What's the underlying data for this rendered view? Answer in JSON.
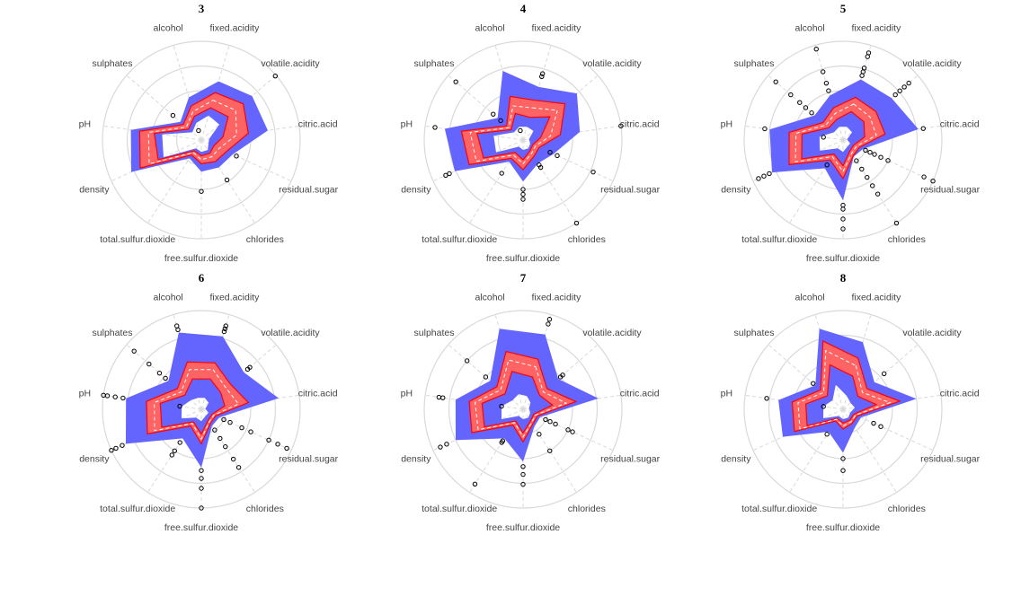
{
  "chart_data": {
    "type": "radar",
    "variables": [
      "fixed.acidity",
      "volatile.acidity",
      "citric.acid",
      "residual.sugar",
      "chlorides",
      "free.sulfur.dioxide",
      "total.sulfur.dioxide",
      "density",
      "pH",
      "sulphates",
      "alcohol"
    ],
    "rlim": [
      0,
      1
    ],
    "grid": true,
    "colors": {
      "whisker_band": "#6464FF",
      "iqr_band": "#FF6464",
      "iqr_border": "#FF0000",
      "median": "#FFFFFF",
      "grid": "#D9D9D9",
      "outlier": "#000000"
    },
    "panels": [
      {
        "title": "3",
        "lo": [
          0.26,
          0.24,
          0.08,
          0.08,
          0.12,
          0.12,
          0.1,
          0.42,
          0.4,
          0.12,
          0.18
        ],
        "q1": [
          0.34,
          0.36,
          0.22,
          0.14,
          0.16,
          0.16,
          0.13,
          0.48,
          0.48,
          0.17,
          0.25
        ],
        "med": [
          0.42,
          0.46,
          0.36,
          0.2,
          0.2,
          0.2,
          0.15,
          0.58,
          0.54,
          0.2,
          0.3
        ],
        "q3": [
          0.5,
          0.56,
          0.48,
          0.28,
          0.26,
          0.24,
          0.18,
          0.68,
          0.63,
          0.24,
          0.36
        ],
        "hi": [
          0.62,
          0.68,
          0.68,
          0.35,
          0.33,
          0.32,
          0.22,
          0.78,
          0.72,
          0.28,
          0.45
        ],
        "outliers": [
          [],
          [
            0.99
          ],
          [],
          [
            0.39
          ],
          [
            0.48
          ],
          [
            0.52
          ],
          [],
          [],
          [],
          [
            0.38
          ],
          [
            0.1
          ]
        ]
      },
      {
        "title": "4",
        "lo": [
          0.14,
          0.14,
          0.06,
          0.08,
          0.1,
          0.1,
          0.08,
          0.3,
          0.3,
          0.12,
          0.14
        ],
        "q1": [
          0.24,
          0.36,
          0.18,
          0.11,
          0.13,
          0.2,
          0.15,
          0.44,
          0.47,
          0.16,
          0.28
        ],
        "med": [
          0.34,
          0.46,
          0.28,
          0.14,
          0.16,
          0.24,
          0.18,
          0.52,
          0.54,
          0.19,
          0.36
        ],
        "q3": [
          0.42,
          0.56,
          0.38,
          0.18,
          0.2,
          0.3,
          0.22,
          0.6,
          0.63,
          0.22,
          0.46
        ],
        "hi": [
          0.56,
          0.72,
          0.58,
          0.34,
          0.28,
          0.42,
          0.26,
          0.76,
          0.8,
          0.34,
          0.73
        ],
        "outliers": [
          [
            0.67,
            0.7
          ],
          [],
          [
            1.0
          ],
          [
            0.3,
            0.38,
            0.78
          ],
          [
            0.3,
            0.33,
            1.0
          ],
          [
            0.5,
            0.55,
            0.6
          ],
          [
            0.4
          ],
          [
            0.82,
            0.86
          ],
          [
            0.9
          ],
          [
            0.3,
            0.4,
            0.9
          ],
          [
            0.1
          ]
        ]
      },
      {
        "title": "5",
        "lo": [
          0.14,
          0.12,
          0.04,
          0.08,
          0.08,
          0.12,
          0.1,
          0.26,
          0.24,
          0.12,
          0.14
        ],
        "q1": [
          0.3,
          0.28,
          0.22,
          0.12,
          0.13,
          0.26,
          0.17,
          0.46,
          0.42,
          0.19,
          0.22
        ],
        "med": [
          0.38,
          0.36,
          0.34,
          0.15,
          0.16,
          0.32,
          0.2,
          0.53,
          0.48,
          0.23,
          0.28
        ],
        "q3": [
          0.45,
          0.44,
          0.43,
          0.18,
          0.19,
          0.39,
          0.24,
          0.6,
          0.55,
          0.27,
          0.34
        ],
        "hi": [
          0.64,
          0.65,
          0.77,
          0.22,
          0.2,
          0.61,
          0.34,
          0.79,
          0.75,
          0.38,
          0.47
        ],
        "outliers": [
          [
            0.68,
            0.72,
            0.76,
            0.88,
            0.92
          ],
          [
            0.7,
            0.76,
            0.82,
            0.88
          ],
          [
            0.82
          ],
          [
            0.25,
            0.3,
            0.35,
            0.42,
            0.5,
            0.9,
            1.0
          ],
          [
            0.25,
            0.35,
            0.45,
            0.55,
            0.65,
            1.0
          ],
          [
            0.66,
            0.7,
            0.8,
            0.9
          ],
          [
            0.3
          ],
          [
            0.82,
            0.88,
            0.94
          ],
          [
            0.2,
            0.8
          ],
          [
            0.42,
            0.5,
            0.58,
            0.7,
            0.9
          ],
          [
            0.52,
            0.6,
            0.72,
            0.96
          ]
        ]
      },
      {
        "title": "6",
        "lo": [
          0.12,
          0.1,
          0.04,
          0.08,
          0.08,
          0.12,
          0.1,
          0.22,
          0.2,
          0.14,
          0.12
        ],
        "q1": [
          0.32,
          0.26,
          0.24,
          0.12,
          0.13,
          0.25,
          0.15,
          0.44,
          0.42,
          0.22,
          0.32
        ],
        "med": [
          0.42,
          0.33,
          0.38,
          0.14,
          0.15,
          0.3,
          0.17,
          0.52,
          0.48,
          0.27,
          0.42
        ],
        "q3": [
          0.49,
          0.39,
          0.48,
          0.16,
          0.17,
          0.35,
          0.2,
          0.6,
          0.56,
          0.32,
          0.5
        ],
        "hi": [
          0.77,
          0.57,
          0.79,
          0.2,
          0.2,
          0.59,
          0.35,
          0.84,
          0.77,
          0.44,
          0.81
        ],
        "outliers": [
          [
            0.82,
            0.85,
            0.88
          ],
          [
            0.62,
            0.65
          ],
          [],
          [
            0.25,
            0.32,
            0.45,
            0.55,
            0.75,
            0.85,
            0.95
          ],
          [
            0.25,
            0.35,
            0.45,
            0.6,
            0.7
          ],
          [
            0.62,
            0.7,
            0.8,
            1.0
          ],
          [
            0.4,
            0.5,
            0.55
          ],
          [
            0.88,
            0.95,
            1.0
          ],
          [
            0.22,
            0.8,
            0.88,
            0.96,
            1.0
          ],
          [
            0.48,
            0.56,
            0.7,
            0.9
          ],
          [
            0.84,
            0.88
          ]
        ]
      },
      {
        "title": "7",
        "lo": [
          0.14,
          0.1,
          0.06,
          0.08,
          0.1,
          0.1,
          0.08,
          0.24,
          0.22,
          0.14,
          0.16
        ],
        "q1": [
          0.34,
          0.22,
          0.3,
          0.12,
          0.14,
          0.24,
          0.14,
          0.43,
          0.42,
          0.24,
          0.4
        ],
        "med": [
          0.45,
          0.27,
          0.44,
          0.14,
          0.16,
          0.28,
          0.16,
          0.5,
          0.49,
          0.3,
          0.52
        ],
        "q3": [
          0.53,
          0.32,
          0.54,
          0.16,
          0.18,
          0.33,
          0.19,
          0.57,
          0.55,
          0.35,
          0.61
        ],
        "hi": [
          0.79,
          0.47,
          0.77,
          0.19,
          0.21,
          0.53,
          0.35,
          0.75,
          0.69,
          0.44,
          0.85
        ],
        "outliers": [
          [
            0.9,
            0.95
          ],
          [
            0.5,
            0.53
          ],
          [],
          [
            0.25,
            0.3,
            0.36,
            0.5,
            0.55
          ],
          [
            0.3,
            0.5
          ],
          [
            0.58,
            0.66,
            0.76
          ],
          [
            0.38,
            0.4,
            0.9
          ],
          [
            0.85,
            0.92
          ],
          [
            0.22,
            0.82,
            0.86
          ],
          [
            0.5,
            0.75
          ],
          []
        ]
      },
      {
        "title": "8",
        "lo": [
          0.14,
          0.1,
          0.12,
          0.08,
          0.1,
          0.1,
          0.08,
          0.22,
          0.2,
          0.14,
          0.26
        ],
        "q1": [
          0.35,
          0.2,
          0.34,
          0.12,
          0.13,
          0.14,
          0.11,
          0.4,
          0.38,
          0.21,
          0.47
        ],
        "med": [
          0.46,
          0.26,
          0.48,
          0.14,
          0.15,
          0.17,
          0.12,
          0.48,
          0.46,
          0.26,
          0.62
        ],
        "q3": [
          0.54,
          0.32,
          0.58,
          0.16,
          0.17,
          0.2,
          0.14,
          0.54,
          0.52,
          0.3,
          0.72
        ],
        "hi": [
          0.71,
          0.42,
          0.75,
          0.2,
          0.22,
          0.44,
          0.27,
          0.67,
          0.66,
          0.37,
          0.85
        ],
        "outliers": [
          [],
          [
            0.55
          ],
          [],
          [
            0.34,
            0.42
          ],
          [],
          [
            0.5,
            0.62
          ],
          [
            0.3
          ],
          [],
          [
            0.2,
            0.78
          ],
          [
            0.4
          ],
          []
        ]
      }
    ]
  }
}
